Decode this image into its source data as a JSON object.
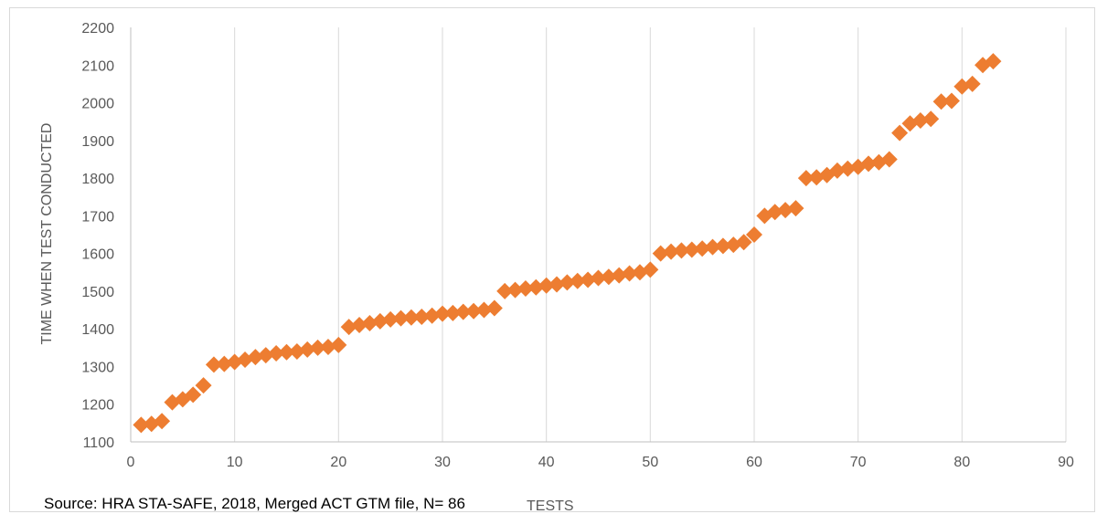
{
  "source_note": "Source: HRA STA-SAFE, 2018, Merged ACT GTM file, N= 86",
  "chart_data": {
    "type": "scatter",
    "title": "",
    "xlabel": "TESTS",
    "ylabel": "TIME WHEN TEST CONDUCTED",
    "xlim": [
      0,
      90
    ],
    "ylim": [
      1100,
      2200
    ],
    "x_ticks": [
      0,
      10,
      20,
      30,
      40,
      50,
      60,
      70,
      80,
      90
    ],
    "y_ticks": [
      1100,
      1200,
      1300,
      1400,
      1500,
      1600,
      1700,
      1800,
      1900,
      2000,
      2100,
      2200
    ],
    "grid": "vertical",
    "marker": "diamond",
    "color": "#ED7D31",
    "points": [
      {
        "x": 1,
        "y": 1145
      },
      {
        "x": 2,
        "y": 1148
      },
      {
        "x": 3,
        "y": 1155
      },
      {
        "x": 4,
        "y": 1205
      },
      {
        "x": 5,
        "y": 1213
      },
      {
        "x": 6,
        "y": 1225
      },
      {
        "x": 7,
        "y": 1250
      },
      {
        "x": 8,
        "y": 1305
      },
      {
        "x": 9,
        "y": 1307
      },
      {
        "x": 10,
        "y": 1312
      },
      {
        "x": 11,
        "y": 1318
      },
      {
        "x": 12,
        "y": 1325
      },
      {
        "x": 13,
        "y": 1330
      },
      {
        "x": 14,
        "y": 1335
      },
      {
        "x": 15,
        "y": 1338
      },
      {
        "x": 16,
        "y": 1340
      },
      {
        "x": 17,
        "y": 1345
      },
      {
        "x": 18,
        "y": 1350
      },
      {
        "x": 19,
        "y": 1352
      },
      {
        "x": 20,
        "y": 1357
      },
      {
        "x": 21,
        "y": 1405
      },
      {
        "x": 22,
        "y": 1410
      },
      {
        "x": 23,
        "y": 1415
      },
      {
        "x": 24,
        "y": 1420
      },
      {
        "x": 25,
        "y": 1425
      },
      {
        "x": 26,
        "y": 1428
      },
      {
        "x": 27,
        "y": 1430
      },
      {
        "x": 28,
        "y": 1432
      },
      {
        "x": 29,
        "y": 1435
      },
      {
        "x": 30,
        "y": 1440
      },
      {
        "x": 31,
        "y": 1442
      },
      {
        "x": 32,
        "y": 1445
      },
      {
        "x": 33,
        "y": 1447
      },
      {
        "x": 34,
        "y": 1450
      },
      {
        "x": 35,
        "y": 1455
      },
      {
        "x": 36,
        "y": 1500
      },
      {
        "x": 37,
        "y": 1503
      },
      {
        "x": 38,
        "y": 1507
      },
      {
        "x": 39,
        "y": 1510
      },
      {
        "x": 40,
        "y": 1515
      },
      {
        "x": 41,
        "y": 1518
      },
      {
        "x": 42,
        "y": 1523
      },
      {
        "x": 43,
        "y": 1527
      },
      {
        "x": 44,
        "y": 1530
      },
      {
        "x": 45,
        "y": 1535
      },
      {
        "x": 46,
        "y": 1538
      },
      {
        "x": 47,
        "y": 1542
      },
      {
        "x": 48,
        "y": 1547
      },
      {
        "x": 49,
        "y": 1550
      },
      {
        "x": 50,
        "y": 1557
      },
      {
        "x": 51,
        "y": 1600
      },
      {
        "x": 52,
        "y": 1605
      },
      {
        "x": 53,
        "y": 1608
      },
      {
        "x": 54,
        "y": 1610
      },
      {
        "x": 55,
        "y": 1613
      },
      {
        "x": 56,
        "y": 1617
      },
      {
        "x": 57,
        "y": 1620
      },
      {
        "x": 58,
        "y": 1623
      },
      {
        "x": 59,
        "y": 1630
      },
      {
        "x": 60,
        "y": 1650
      },
      {
        "x": 61,
        "y": 1700
      },
      {
        "x": 62,
        "y": 1710
      },
      {
        "x": 63,
        "y": 1715
      },
      {
        "x": 64,
        "y": 1720
      },
      {
        "x": 65,
        "y": 1800
      },
      {
        "x": 66,
        "y": 1802
      },
      {
        "x": 67,
        "y": 1808
      },
      {
        "x": 68,
        "y": 1820
      },
      {
        "x": 69,
        "y": 1825
      },
      {
        "x": 70,
        "y": 1830
      },
      {
        "x": 71,
        "y": 1838
      },
      {
        "x": 72,
        "y": 1842
      },
      {
        "x": 73,
        "y": 1850
      },
      {
        "x": 74,
        "y": 1920
      },
      {
        "x": 75,
        "y": 1945
      },
      {
        "x": 76,
        "y": 1953
      },
      {
        "x": 77,
        "y": 1957
      },
      {
        "x": 78,
        "y": 2003
      },
      {
        "x": 79,
        "y": 2005
      },
      {
        "x": 80,
        "y": 2043
      },
      {
        "x": 81,
        "y": 2050
      },
      {
        "x": 82,
        "y": 2100
      },
      {
        "x": 83,
        "y": 2110
      }
    ]
  }
}
